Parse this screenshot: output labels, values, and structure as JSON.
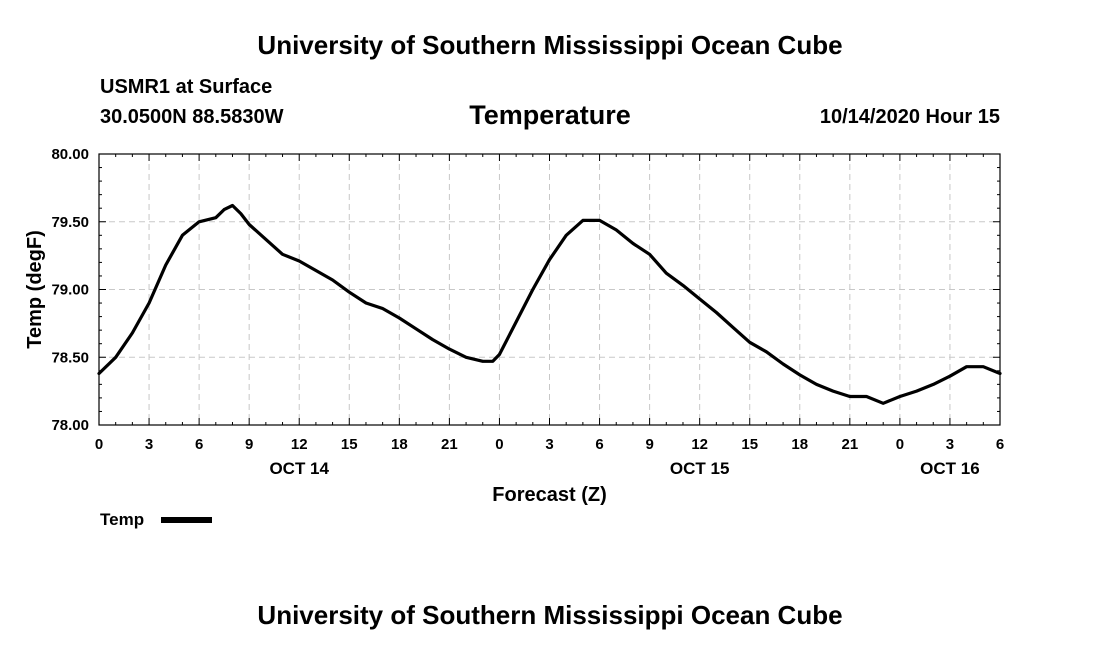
{
  "header": {
    "title": "University of Southern Mississippi Ocean Cube",
    "station": "USMR1 at Surface",
    "coords": "30.0500N 88.5830W",
    "timestamp": "10/14/2020 Hour 15"
  },
  "footer": {
    "title": "University of Southern Mississippi Ocean Cube"
  },
  "chart_data": {
    "type": "line",
    "title": "Temperature",
    "xlabel": "Forecast (Z)",
    "ylabel": "Temp (degF)",
    "xlim": [
      0,
      54
    ],
    "ylim": [
      78.0,
      80.0
    ],
    "grid": true,
    "legend": "bottom-left",
    "x_ticks": [
      0,
      3,
      6,
      9,
      12,
      15,
      18,
      21,
      24,
      27,
      30,
      33,
      36,
      39,
      42,
      45,
      48,
      51,
      54
    ],
    "x_tick_labels": [
      "0",
      "3",
      "6",
      "9",
      "12",
      "15",
      "18",
      "21",
      "0",
      "3",
      "6",
      "9",
      "12",
      "15",
      "18",
      "21",
      "0",
      "3",
      "6"
    ],
    "y_ticks": [
      78.0,
      78.5,
      79.0,
      79.5,
      80.0
    ],
    "y_tick_labels": [
      "78.00",
      "78.50",
      "79.00",
      "79.50",
      "80.00"
    ],
    "date_labels": [
      {
        "x": 12,
        "label": "OCT 14"
      },
      {
        "x": 36,
        "label": "OCT 15"
      },
      {
        "x": 51,
        "label": "OCT 16"
      }
    ],
    "series": [
      {
        "name": "Temp",
        "color": "#000000",
        "x": [
          0,
          1,
          2,
          3,
          4,
          5,
          6,
          7,
          7.5,
          8,
          8.5,
          9,
          10,
          11,
          12,
          13,
          14,
          15,
          16,
          17,
          18,
          19,
          20,
          21,
          22,
          23,
          23.6,
          24,
          25,
          26,
          27,
          28,
          29,
          30,
          31,
          32,
          33,
          34,
          35,
          36,
          37,
          38,
          39,
          40,
          41,
          42,
          43,
          44,
          45,
          46,
          47,
          48,
          49,
          50,
          51,
          52,
          53,
          54
        ],
        "values": [
          78.38,
          78.5,
          78.68,
          78.9,
          79.18,
          79.4,
          79.5,
          79.53,
          79.59,
          79.62,
          79.56,
          79.48,
          79.37,
          79.26,
          79.21,
          79.14,
          79.07,
          78.98,
          78.9,
          78.86,
          78.79,
          78.71,
          78.63,
          78.56,
          78.5,
          78.47,
          78.47,
          78.52,
          78.76,
          79.0,
          79.22,
          79.4,
          79.51,
          79.51,
          79.44,
          79.34,
          79.26,
          79.12,
          79.03,
          78.93,
          78.83,
          78.72,
          78.61,
          78.54,
          78.45,
          78.37,
          78.3,
          78.25,
          78.21,
          78.21,
          78.16,
          78.21,
          78.25,
          78.3,
          78.36,
          78.43,
          78.43,
          78.38
        ]
      }
    ]
  }
}
